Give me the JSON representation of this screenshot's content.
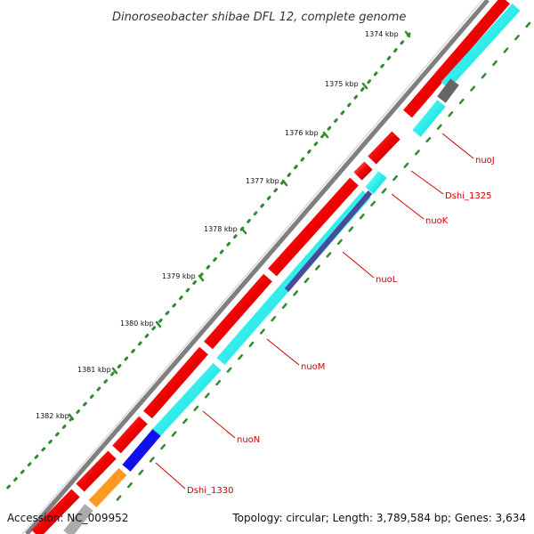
{
  "map": {
    "title": "Dinoroseobacter shibae DFL 12, complete genome",
    "accession_text": "Accession: NC_009952",
    "summary_text": "Topology: circular; Length: 3,789,584 bp; Genes: 3,634"
  },
  "ticks": [
    "1374 kbp",
    "1375 kbp",
    "1376 kbp",
    "1377 kbp",
    "1378 kbp",
    "1379 kbp",
    "1380 kbp",
    "1381 kbp",
    "1382 kbp"
  ],
  "genes": [
    "nuoJ",
    "Dshi_1325",
    "nuoK",
    "nuoL",
    "nuoM",
    "nuoN",
    "Dshi_1330"
  ],
  "colors": {
    "backbone": "#7f7f7f",
    "forward_cds": "#ee0000",
    "reverse_cds": "#00e5e5",
    "gray_feature": "#666666",
    "blue_feature": "#1010ee",
    "navy_feature": "#4a4a9a",
    "orange_feature": "#ff9922",
    "tick_marks": "#2e8b2e",
    "gene_label": "#cc0000"
  }
}
